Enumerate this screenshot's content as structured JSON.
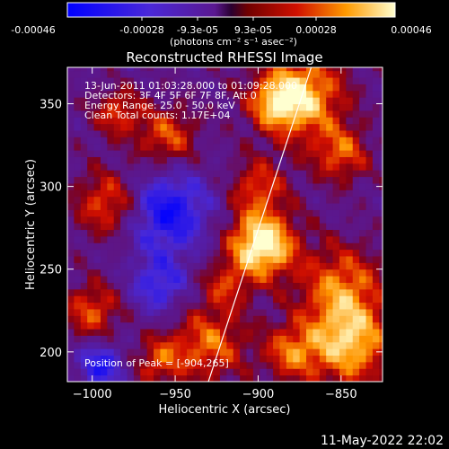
{
  "colorbar": {
    "ticks": [
      "-0.00046",
      "-0.00028",
      "-9.3e-05",
      "9.3e-05",
      "0.00028",
      "0.00046"
    ],
    "unit_label": "(photons cm⁻² s⁻¹ asec⁻²)",
    "range": [
      -0.00046,
      0.00046
    ]
  },
  "chart_data": {
    "type": "heatmap",
    "title": "Reconstructed RHESSI Image",
    "xlabel": "Heliocentric X (arcsec)",
    "ylabel": "Heliocentric Y (arcsec)",
    "xlim": [
      -1015,
      -825
    ],
    "ylim": [
      182,
      372
    ],
    "x_ticks": [
      -1000,
      -950,
      -900,
      -850
    ],
    "y_ticks": [
      200,
      250,
      300,
      350
    ],
    "x_tick_labels": [
      "−1000",
      "−950",
      "−900",
      "−850"
    ],
    "y_tick_labels": [
      "200",
      "250",
      "300",
      "350"
    ],
    "annotations": [
      "13-Jun-2011 01:03:28.000 to 01:09:28.000",
      "Detectors: 3F 4F 5F 6F 7F 8F, Att 0",
      "Energy Range: 25.0 - 50.0 keV",
      "Clean     Total counts: 1.17E+04"
    ],
    "peak_text": "Position of Peak = [-904,265]",
    "peak": [
      -904,
      265
    ],
    "limb_line": [
      [
        -930,
        182
      ],
      [
        -868,
        372
      ]
    ]
  },
  "footer": {
    "timestamp": "11-May-2022 22:02"
  }
}
